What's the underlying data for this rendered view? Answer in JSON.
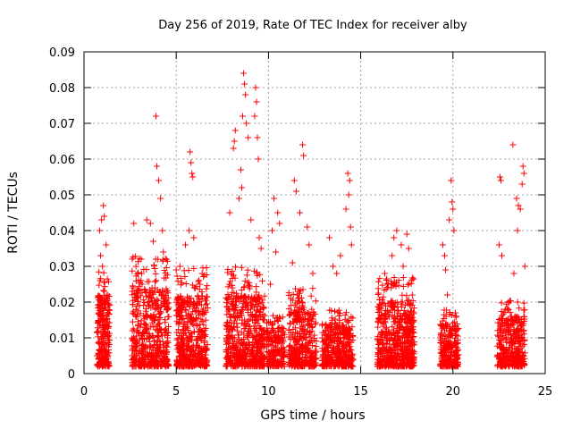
{
  "chart_data": {
    "type": "scatter",
    "title": "Day 256 of 2019, Rate Of TEC Index for receiver alby",
    "xlabel": "GPS time / hours",
    "ylabel": "ROTI / TECUs",
    "xlim": [
      0,
      25
    ],
    "ylim": [
      0,
      0.09
    ],
    "xticks": [
      0,
      5,
      10,
      15,
      20,
      25
    ],
    "xtick_labels": [
      "0",
      "5",
      "10",
      "15",
      "20",
      "25"
    ],
    "yticks": [
      0,
      0.01,
      0.02,
      0.03,
      0.04,
      0.05,
      0.06,
      0.07,
      0.08,
      0.09
    ],
    "ytick_labels": [
      "0",
      "0.01",
      "0.02",
      "0.03",
      "0.04",
      "0.05",
      "0.06",
      "0.07",
      "0.08",
      "0.09"
    ],
    "grid": true,
    "marker": "+",
    "color": "#ff0000",
    "series": [
      {
        "name": "ROTI",
        "clusters": [
          {
            "x_start": 0.7,
            "x_end": 1.4,
            "n": 260,
            "typ_max": 0.02,
            "outliers": [
              [
                0.85,
                0.04
              ],
              [
                0.95,
                0.043
              ],
              [
                1.05,
                0.047
              ],
              [
                1.1,
                0.044
              ],
              [
                0.9,
                0.033
              ],
              [
                1.2,
                0.036
              ],
              [
                1.0,
                0.03
              ]
            ]
          },
          {
            "x_start": 2.6,
            "x_end": 4.6,
            "n": 520,
            "typ_max": 0.022,
            "outliers": [
              [
                2.7,
                0.042
              ],
              [
                3.4,
                0.043
              ],
              [
                3.6,
                0.042
              ],
              [
                3.9,
                0.072
              ],
              [
                3.95,
                0.058
              ],
              [
                4.05,
                0.054
              ],
              [
                4.15,
                0.049
              ],
              [
                4.25,
                0.04
              ],
              [
                3.1,
                0.032
              ],
              [
                3.75,
                0.037
              ],
              [
                4.3,
                0.034
              ]
            ]
          },
          {
            "x_start": 5.0,
            "x_end": 6.7,
            "n": 470,
            "typ_max": 0.02,
            "outliers": [
              [
                5.0,
                0.029
              ],
              [
                5.2,
                0.03
              ],
              [
                5.5,
                0.036
              ],
              [
                5.75,
                0.062
              ],
              [
                5.8,
                0.059
              ],
              [
                5.85,
                0.056
              ],
              [
                5.9,
                0.055
              ],
              [
                5.7,
                0.04
              ],
              [
                5.95,
                0.038
              ],
              [
                6.4,
                0.028
              ]
            ]
          },
          {
            "x_start": 7.7,
            "x_end": 9.8,
            "n": 560,
            "typ_max": 0.02,
            "outliers": [
              [
                7.9,
                0.045
              ],
              [
                8.1,
                0.063
              ],
              [
                8.2,
                0.068
              ],
              [
                8.15,
                0.065
              ],
              [
                8.65,
                0.084
              ],
              [
                8.7,
                0.081
              ],
              [
                8.75,
                0.078
              ],
              [
                8.6,
                0.072
              ],
              [
                8.8,
                0.07
              ],
              [
                8.9,
                0.066
              ],
              [
                9.3,
                0.08
              ],
              [
                9.35,
                0.076
              ],
              [
                9.25,
                0.072
              ],
              [
                9.4,
                0.066
              ],
              [
                9.45,
                0.06
              ],
              [
                8.5,
                0.057
              ],
              [
                8.55,
                0.052
              ],
              [
                9.05,
                0.043
              ],
              [
                9.5,
                0.038
              ],
              [
                9.6,
                0.035
              ],
              [
                8.4,
                0.049
              ]
            ]
          },
          {
            "x_start": 9.9,
            "x_end": 10.9,
            "n": 200,
            "typ_max": 0.011,
            "outliers": [
              [
                10.3,
                0.049
              ],
              [
                10.5,
                0.045
              ],
              [
                10.6,
                0.042
              ],
              [
                10.2,
                0.04
              ],
              [
                10.4,
                0.034
              ],
              [
                10.1,
                0.025
              ]
            ]
          },
          {
            "x_start": 11.1,
            "x_end": 12.6,
            "n": 380,
            "typ_max": 0.016,
            "outliers": [
              [
                11.4,
                0.054
              ],
              [
                11.5,
                0.051
              ],
              [
                11.85,
                0.064
              ],
              [
                11.9,
                0.061
              ],
              [
                11.7,
                0.045
              ],
              [
                12.1,
                0.041
              ],
              [
                12.2,
                0.036
              ],
              [
                11.3,
                0.031
              ],
              [
                12.4,
                0.028
              ]
            ]
          },
          {
            "x_start": 12.9,
            "x_end": 14.6,
            "n": 400,
            "typ_max": 0.012,
            "outliers": [
              [
                13.3,
                0.038
              ],
              [
                13.5,
                0.03
              ],
              [
                14.3,
                0.056
              ],
              [
                14.4,
                0.054
              ],
              [
                14.35,
                0.05
              ],
              [
                14.2,
                0.046
              ],
              [
                14.45,
                0.041
              ],
              [
                14.5,
                0.036
              ],
              [
                13.9,
                0.033
              ],
              [
                13.7,
                0.028
              ]
            ]
          },
          {
            "x_start": 15.9,
            "x_end": 17.9,
            "n": 600,
            "typ_max": 0.018,
            "outliers": [
              [
                16.5,
                0.025
              ],
              [
                16.7,
                0.033
              ],
              [
                16.8,
                0.038
              ],
              [
                16.95,
                0.04
              ],
              [
                17.2,
                0.036
              ],
              [
                17.5,
                0.039
              ],
              [
                17.6,
                0.035
              ],
              [
                17.3,
                0.03
              ],
              [
                16.3,
                0.028
              ],
              [
                17.8,
                0.022
              ]
            ]
          },
          {
            "x_start": 19.3,
            "x_end": 20.3,
            "n": 250,
            "typ_max": 0.012,
            "outliers": [
              [
                19.45,
                0.036
              ],
              [
                19.55,
                0.033
              ],
              [
                19.9,
                0.054
              ],
              [
                19.95,
                0.048
              ],
              [
                20.0,
                0.046
              ],
              [
                19.8,
                0.043
              ],
              [
                19.6,
                0.029
              ],
              [
                20.05,
                0.04
              ],
              [
                19.7,
                0.022
              ]
            ]
          },
          {
            "x_start": 22.4,
            "x_end": 23.9,
            "n": 360,
            "typ_max": 0.014,
            "outliers": [
              [
                22.55,
                0.055
              ],
              [
                22.6,
                0.054
              ],
              [
                22.5,
                0.036
              ],
              [
                22.65,
                0.033
              ],
              [
                23.25,
                0.064
              ],
              [
                23.45,
                0.049
              ],
              [
                23.55,
                0.047
              ],
              [
                23.8,
                0.058
              ],
              [
                23.85,
                0.056
              ],
              [
                23.75,
                0.053
              ],
              [
                23.65,
                0.046
              ],
              [
                23.5,
                0.04
              ],
              [
                23.9,
                0.03
              ],
              [
                23.3,
                0.028
              ]
            ]
          }
        ]
      }
    ]
  }
}
